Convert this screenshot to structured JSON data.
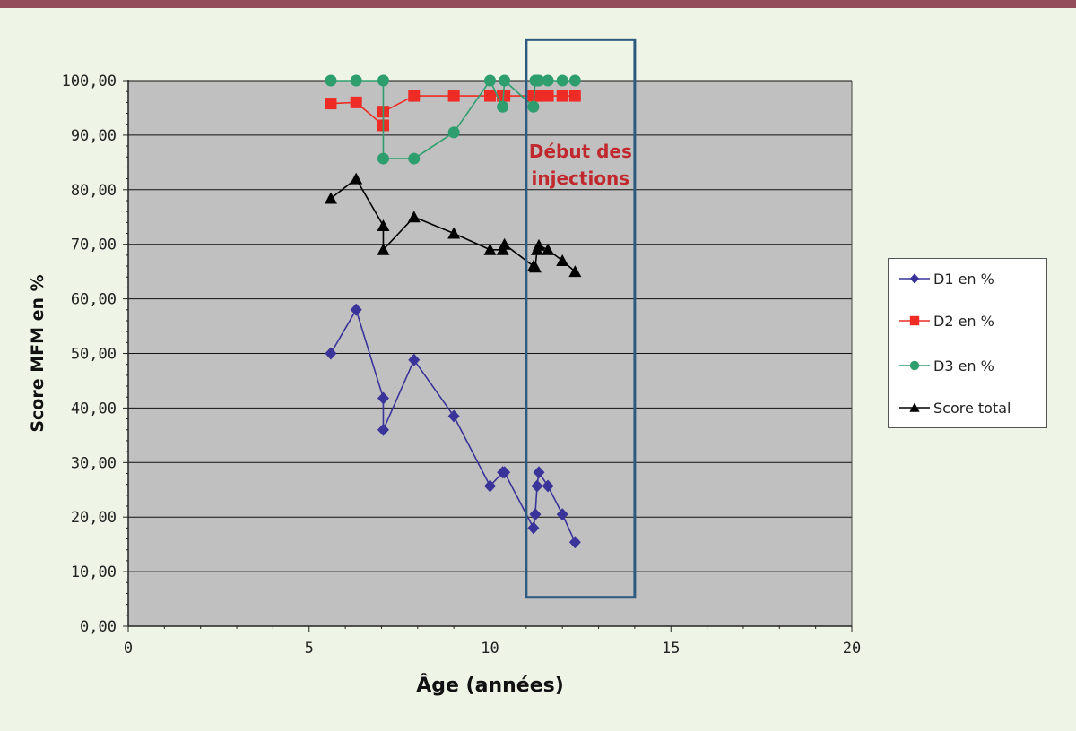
{
  "chart_data": {
    "type": "line",
    "xlabel": "Âge (années)",
    "ylabel": "Score MFM en %",
    "xlim": [
      0,
      20
    ],
    "ylim": [
      0,
      100
    ],
    "xticks": [
      0,
      5,
      10,
      15,
      20
    ],
    "xtick_labels": [
      "0",
      "5",
      "10",
      "15",
      "20"
    ],
    "yticks": [
      0,
      10,
      20,
      30,
      40,
      50,
      60,
      70,
      80,
      90,
      100
    ],
    "ytick_labels": [
      "0,00",
      "10,00",
      "20,00",
      "30,00",
      "40,00",
      "50,00",
      "60,00",
      "70,00",
      "80,00",
      "90,00",
      "100,00"
    ],
    "grid": true,
    "legend_position": "right",
    "series": [
      {
        "name": "D1 en %",
        "color": "#3a3399",
        "marker": "diamond",
        "x": [
          5.6,
          6.3,
          7.05,
          7.05,
          7.9,
          9.0,
          10.0,
          10.35,
          10.4,
          11.2,
          11.25,
          11.3,
          11.35,
          11.6,
          12.0,
          12.35
        ],
        "y": [
          50.0,
          58.0,
          41.8,
          36.0,
          48.8,
          38.5,
          25.7,
          28.2,
          28.2,
          18.0,
          20.5,
          25.7,
          28.2,
          25.7,
          20.5,
          15.4
        ]
      },
      {
        "name": "D2 en %",
        "color": "#ee2b24",
        "marker": "square",
        "x": [
          5.6,
          6.3,
          7.05,
          7.05,
          7.9,
          9.0,
          10.0,
          10.35,
          10.4,
          11.2,
          11.25,
          11.3,
          11.35,
          11.6,
          12.0,
          12.35
        ],
        "y": [
          95.8,
          96.0,
          91.8,
          94.3,
          97.2,
          97.2,
          97.2,
          97.2,
          97.2,
          97.2,
          97.2,
          97.2,
          97.2,
          97.2,
          97.2,
          97.2
        ]
      },
      {
        "name": "D3 en %",
        "color": "#2e9e6e",
        "marker": "circle",
        "x": [
          5.6,
          6.3,
          7.05,
          7.05,
          7.9,
          9.0,
          10.0,
          10.35,
          10.4,
          11.2,
          11.25,
          11.3,
          11.35,
          11.6,
          12.0,
          12.35
        ],
        "y": [
          100,
          100,
          100,
          85.7,
          85.7,
          90.5,
          100,
          95.2,
          100,
          95.2,
          100,
          100,
          100,
          100,
          100,
          100
        ]
      },
      {
        "name": "Score total",
        "color": "#000000",
        "marker": "triangle",
        "x": [
          5.6,
          6.3,
          7.05,
          7.05,
          7.9,
          9.0,
          10.0,
          10.35,
          10.4,
          11.2,
          11.25,
          11.3,
          11.35,
          11.6,
          12.0,
          12.35
        ],
        "y": [
          78.4,
          82.0,
          73.4,
          69.0,
          75.0,
          72.0,
          69.0,
          69.0,
          70.0,
          66.0,
          65.8,
          69.0,
          69.8,
          69.0,
          67.0,
          65.0
        ]
      }
    ],
    "annotation": {
      "lines": [
        "Début des",
        "injections"
      ],
      "box_x": [
        11.0,
        14.0
      ],
      "box_y": [
        5.3,
        107.5
      ],
      "box_color": "#2e5a80"
    }
  }
}
